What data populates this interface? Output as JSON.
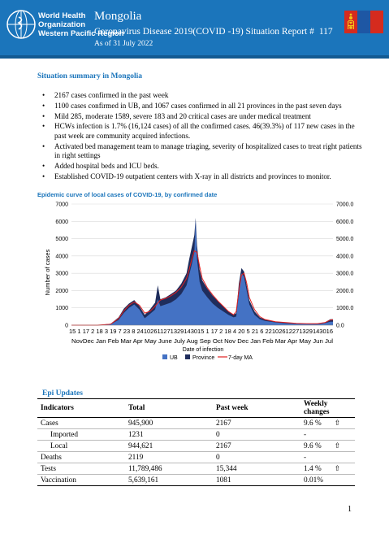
{
  "header": {
    "org_lines": [
      "World Health",
      "Organization",
      "Western Pacific Region"
    ],
    "country": "Mongolia",
    "title": "Coronavirus Disease 2019(COVID -19) Situation Report #",
    "report_number": "117",
    "as_of": "As of 31 July 2022",
    "banner_color": "#1b75bb",
    "logo_icon": "who-emblem-icon",
    "flag_icon": "mongolia-flag-icon",
    "flag_colors": [
      "#d52b1e",
      "#1e57a4",
      "#d52b1e"
    ]
  },
  "summary": {
    "title": "Situation summary in Mongolia",
    "bullets": [
      "2167 cases confirmed in the past week",
      "1100 cases confirmed in UB, and 1067 cases confirmed in all 21 provinces in the past seven days",
      "Mild 285, moderate 1589, severe 183 and 20 critical cases are under medical treatment",
      "HCWs infection is 1.7% (16,124 cases) of all the confirmed cases. 46(39.3%) of 117 new cases in the past week are community acquired infections.",
      "Activated bed management team to manage triaging, severity of hospitalized cases to treat right patients in right settings",
      "Added hospital beds and ICU beds.",
      "Established COVID-19 outpatient centers with X-ray in all districts and provinces to monitor."
    ]
  },
  "chart_data": {
    "type": "area",
    "title": "Epidemic curve of local cases of COVID-19, by confirmed date",
    "xlabel": "Date of infection",
    "ylabel": "Number of cases",
    "ylim": [
      0,
      7000
    ],
    "y_ticks_left": [
      "0",
      "1000",
      "2000",
      "3000",
      "4000",
      "5000",
      "6000",
      "7000"
    ],
    "y_ticks_right": [
      "0.0",
      "1000.0",
      "2000.0",
      "3000.0",
      "4000.0",
      "5000.0",
      "6000.0",
      "7000.0"
    ],
    "day_tick_labels": "15 1 17 2 18 3 19 7 23 8 24102611271329143015 1 17 2 18 4 20 5 21 6 22102612271329143016",
    "months": [
      "Nov",
      "Dec",
      "Jan",
      "Feb",
      "Mar",
      "Apr",
      "May",
      "June",
      "July",
      "Aug",
      "Sep",
      "Oct",
      "Nov",
      "Dec",
      "Jan",
      "Feb",
      "Mar",
      "Apr",
      "May",
      "June",
      "July"
    ],
    "months_text": "NovDec Jan Feb Mar Apr May June July Aug Sep Oct Nov Dec Jan Feb Mar Apr May Jun Jul",
    "legend_placement": "bottom",
    "series": [
      {
        "name": "UB",
        "color": "#4472c4",
        "points": [
          [
            0,
            0
          ],
          [
            0.1,
            0
          ],
          [
            0.15,
            50
          ],
          [
            0.18,
            300
          ],
          [
            0.2,
            700
          ],
          [
            0.22,
            1000
          ],
          [
            0.24,
            1200
          ],
          [
            0.26,
            900
          ],
          [
            0.28,
            400
          ],
          [
            0.3,
            650
          ],
          [
            0.32,
            900
          ],
          [
            0.33,
            1500
          ],
          [
            0.34,
            1100
          ],
          [
            0.36,
            1200
          ],
          [
            0.38,
            1300
          ],
          [
            0.4,
            1500
          ],
          [
            0.42,
            1800
          ],
          [
            0.44,
            2300
          ],
          [
            0.45,
            2900
          ],
          [
            0.46,
            3500
          ],
          [
            0.47,
            4200
          ],
          [
            0.475,
            6100
          ],
          [
            0.48,
            3800
          ],
          [
            0.49,
            2500
          ],
          [
            0.5,
            2000
          ],
          [
            0.52,
            1600
          ],
          [
            0.54,
            1250
          ],
          [
            0.56,
            1000
          ],
          [
            0.58,
            800
          ],
          [
            0.6,
            600
          ],
          [
            0.62,
            450
          ],
          [
            0.63,
            500
          ],
          [
            0.64,
            1800
          ],
          [
            0.65,
            3000
          ],
          [
            0.66,
            2800
          ],
          [
            0.67,
            2000
          ],
          [
            0.68,
            1200
          ],
          [
            0.7,
            600
          ],
          [
            0.72,
            350
          ],
          [
            0.74,
            250
          ],
          [
            0.78,
            160
          ],
          [
            0.82,
            110
          ],
          [
            0.86,
            80
          ],
          [
            0.9,
            70
          ],
          [
            0.94,
            60
          ],
          [
            0.97,
            120
          ],
          [
            0.99,
            200
          ],
          [
            1,
            200
          ]
        ]
      },
      {
        "name": "Province",
        "color": "#1f2d5c",
        "points": [
          [
            0,
            0
          ],
          [
            0.1,
            0
          ],
          [
            0.15,
            80
          ],
          [
            0.18,
            450
          ],
          [
            0.2,
            950
          ],
          [
            0.22,
            1250
          ],
          [
            0.24,
            1450
          ],
          [
            0.26,
            1100
          ],
          [
            0.28,
            600
          ],
          [
            0.3,
            900
          ],
          [
            0.32,
            1300
          ],
          [
            0.33,
            2300
          ],
          [
            0.34,
            1500
          ],
          [
            0.36,
            1600
          ],
          [
            0.38,
            1800
          ],
          [
            0.4,
            2000
          ],
          [
            0.42,
            2400
          ],
          [
            0.44,
            3000
          ],
          [
            0.45,
            3800
          ],
          [
            0.46,
            4500
          ],
          [
            0.47,
            5200
          ],
          [
            0.475,
            6200
          ],
          [
            0.48,
            4600
          ],
          [
            0.49,
            3200
          ],
          [
            0.5,
            2600
          ],
          [
            0.52,
            2100
          ],
          [
            0.54,
            1700
          ],
          [
            0.56,
            1400
          ],
          [
            0.58,
            1100
          ],
          [
            0.6,
            800
          ],
          [
            0.62,
            600
          ],
          [
            0.63,
            700
          ],
          [
            0.64,
            2400
          ],
          [
            0.65,
            3300
          ],
          [
            0.66,
            3100
          ],
          [
            0.67,
            2300
          ],
          [
            0.68,
            1450
          ],
          [
            0.7,
            800
          ],
          [
            0.72,
            450
          ],
          [
            0.74,
            320
          ],
          [
            0.78,
            210
          ],
          [
            0.82,
            150
          ],
          [
            0.86,
            110
          ],
          [
            0.9,
            90
          ],
          [
            0.94,
            80
          ],
          [
            0.97,
            170
          ],
          [
            0.99,
            350
          ],
          [
            1,
            350
          ]
        ]
      },
      {
        "name": "7-day MA",
        "color": "#e02020",
        "points": [
          [
            0,
            0
          ],
          [
            0.1,
            0
          ],
          [
            0.15,
            60
          ],
          [
            0.18,
            380
          ],
          [
            0.2,
            820
          ],
          [
            0.22,
            1150
          ],
          [
            0.24,
            1350
          ],
          [
            0.26,
            1150
          ],
          [
            0.28,
            700
          ],
          [
            0.3,
            800
          ],
          [
            0.32,
            1100
          ],
          [
            0.34,
            1450
          ],
          [
            0.36,
            1550
          ],
          [
            0.38,
            1700
          ],
          [
            0.4,
            1900
          ],
          [
            0.42,
            2200
          ],
          [
            0.44,
            2700
          ],
          [
            0.45,
            3200
          ],
          [
            0.46,
            3800
          ],
          [
            0.47,
            4300
          ],
          [
            0.48,
            4200
          ],
          [
            0.49,
            3400
          ],
          [
            0.5,
            2700
          ],
          [
            0.52,
            2150
          ],
          [
            0.54,
            1750
          ],
          [
            0.56,
            1400
          ],
          [
            0.58,
            1100
          ],
          [
            0.6,
            800
          ],
          [
            0.62,
            600
          ],
          [
            0.63,
            800
          ],
          [
            0.64,
            2000
          ],
          [
            0.65,
            2900
          ],
          [
            0.66,
            3000
          ],
          [
            0.67,
            2450
          ],
          [
            0.68,
            1600
          ],
          [
            0.7,
            900
          ],
          [
            0.72,
            500
          ],
          [
            0.74,
            330
          ],
          [
            0.78,
            200
          ],
          [
            0.82,
            150
          ],
          [
            0.86,
            110
          ],
          [
            0.9,
            90
          ],
          [
            0.94,
            90
          ],
          [
            0.97,
            150
          ],
          [
            0.99,
            300
          ],
          [
            1,
            310
          ]
        ]
      }
    ]
  },
  "epi": {
    "title": "Epi Updates",
    "headers": [
      "Indicators",
      "Total",
      "Past week",
      "Weekly changes"
    ],
    "up_arrow": "⇧",
    "rows": [
      {
        "indicator": "Cases",
        "total": "945,900",
        "past_week": "2167",
        "change": "9.6 %",
        "arrow": "⇧"
      },
      {
        "indicator": "Imported",
        "total": "1231",
        "past_week": "0",
        "change": "-",
        "arrow": ""
      },
      {
        "indicator": "Local",
        "total": "944,621",
        "past_week": "2167",
        "change": "9.6 %",
        "arrow": "⇧"
      },
      {
        "indicator": "Deaths",
        "total": "2119",
        "past_week": "0",
        "change": "-",
        "arrow": ""
      },
      {
        "indicator": "Tests",
        "total": "11,789,486",
        "past_week": "15,344",
        "change": "1.4 %",
        "arrow": "⇧"
      },
      {
        "indicator": "Vaccination",
        "total": "5,639,161",
        "past_week": "1081",
        "change": "0.01%",
        "arrow": ""
      }
    ]
  },
  "page_number": "1"
}
